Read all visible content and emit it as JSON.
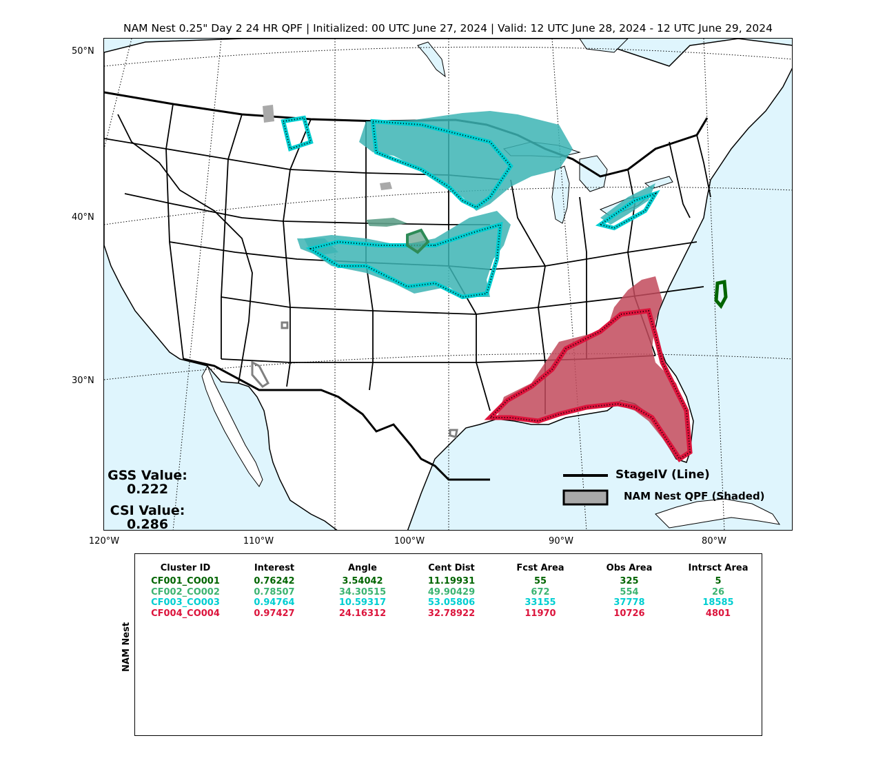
{
  "title": "NAM Nest 0.25\" Day 2 24 HR QPF | Initialized: 00 UTC June 27, 2024 | Valid: 12 UTC June 28, 2024 - 12 UTC June 29, 2024",
  "lat_labels": [
    "50°N",
    "40°N",
    "30°N"
  ],
  "lon_labels": [
    "120°W",
    "110°W",
    "100°W",
    "90°W",
    "80°W"
  ],
  "scores": {
    "gss_label": "GSS Value:",
    "gss_value": "0.222",
    "csi_label": "CSI Value:",
    "csi_value": "0.286"
  },
  "legend": {
    "line_label": "StageIV (Line)",
    "shaded_label": "NAM Nest QPF (Shaded)"
  },
  "colors": {
    "ocean": "#dff5fd",
    "cluster1": "#006400",
    "cluster2": "#2e8b57",
    "cluster3": "#00ced1",
    "cluster4": "#dc143c",
    "unmatched": "#a9a9a9"
  },
  "table": {
    "side_label": "NAM Nest",
    "headers": [
      "Cluster ID",
      "Interest",
      "Angle",
      "Cent Dist",
      "Fcst Area",
      "Obs Area",
      "Intrsct Area"
    ],
    "rows": [
      {
        "color": "#006400",
        "cells": [
          "CF001_CO001",
          "0.76242",
          "3.54042",
          "11.19931",
          "55",
          "325",
          "5"
        ]
      },
      {
        "color": "#3cb371",
        "cells": [
          "CF002_CO002",
          "0.78507",
          "34.30515",
          "49.90429",
          "672",
          "554",
          "26"
        ]
      },
      {
        "color": "#00ced1",
        "cells": [
          "CF003_CO003",
          "0.94764",
          "10.59317",
          "53.05806",
          "33155",
          "37778",
          "18585"
        ]
      },
      {
        "color": "#dc143c",
        "cells": [
          "CF004_CO004",
          "0.97427",
          "24.16312",
          "32.78922",
          "11970",
          "10726",
          "4801"
        ]
      }
    ]
  }
}
